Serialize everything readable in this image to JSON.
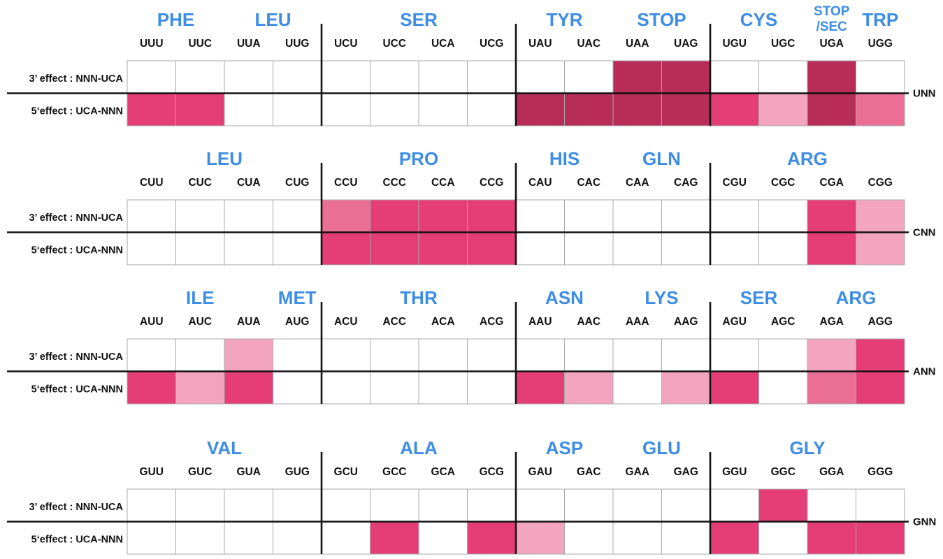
{
  "colors": {
    "none": "#ffffff",
    "light": "#f3a4bf",
    "medium": "#eb6e97",
    "strong": "#e53d76",
    "stop": "#b72c59",
    "amino_acid_label": "#3d8de5",
    "grid_line": "#a9a9a9",
    "divider": "#111111"
  },
  "row_labels": [
    "3’ effect : NNN-UCA",
    "5‘effect : UCA-NNN"
  ],
  "blocks": [
    {
      "group_label": "UNN",
      "amino_acids": [
        {
          "label": "PHE",
          "from": 0,
          "to": 1
        },
        {
          "label": "LEU",
          "from": 2,
          "to": 3
        },
        {
          "label": "SER",
          "from": 4,
          "to": 7
        },
        {
          "label": "TYR",
          "from": 8,
          "to": 9
        },
        {
          "label": "STOP",
          "from": 10,
          "to": 11
        },
        {
          "label": "CYS",
          "from": 12,
          "to": 13
        },
        {
          "label": "STOP",
          "label2": "/SEC",
          "from": 14,
          "to": 14
        },
        {
          "label": "TRP",
          "from": 15,
          "to": 15
        }
      ],
      "codons": [
        "UUU",
        "UUC",
        "UUA",
        "UUG",
        "UCU",
        "UCC",
        "UCA",
        "UCG",
        "UAU",
        "UAC",
        "UAA",
        "UAG",
        "UGU",
        "UGC",
        "UGA",
        "UGG"
      ],
      "effect_3": [
        "none",
        "none",
        "none",
        "none",
        "none",
        "none",
        "none",
        "none",
        "none",
        "none",
        "stop",
        "stop",
        "none",
        "none",
        "stop",
        "none"
      ],
      "effect_5": [
        "strong",
        "strong",
        "none",
        "none",
        "none",
        "none",
        "none",
        "none",
        "stop",
        "stop",
        "stop",
        "stop",
        "strong",
        "light",
        "stop",
        "medium"
      ]
    },
    {
      "group_label": "CNN",
      "amino_acids": [
        {
          "label": "LEU",
          "from": 0,
          "to": 3
        },
        {
          "label": "PRO",
          "from": 4,
          "to": 7
        },
        {
          "label": "HIS",
          "from": 8,
          "to": 9
        },
        {
          "label": "GLN",
          "from": 10,
          "to": 11
        },
        {
          "label": "ARG",
          "from": 12,
          "to": 15
        }
      ],
      "codons": [
        "CUU",
        "CUC",
        "CUA",
        "CUG",
        "CCU",
        "CCC",
        "CCA",
        "CCG",
        "CAU",
        "CAC",
        "CAA",
        "CAG",
        "CGU",
        "CGC",
        "CGA",
        "CGG"
      ],
      "effect_3": [
        "none",
        "none",
        "none",
        "none",
        "medium",
        "strong",
        "strong",
        "strong",
        "none",
        "none",
        "none",
        "none",
        "none",
        "none",
        "strong",
        "light"
      ],
      "effect_5": [
        "none",
        "none",
        "none",
        "none",
        "strong",
        "strong",
        "strong",
        "strong",
        "none",
        "none",
        "none",
        "none",
        "none",
        "none",
        "strong",
        "light"
      ]
    },
    {
      "group_label": "ANN",
      "amino_acids": [
        {
          "label": "ILE",
          "from": 0,
          "to": 2
        },
        {
          "label": "MET",
          "from": 3,
          "to": 3
        },
        {
          "label": "THR",
          "from": 4,
          "to": 7
        },
        {
          "label": "ASN",
          "from": 8,
          "to": 9
        },
        {
          "label": "LYS",
          "from": 10,
          "to": 11
        },
        {
          "label": "SER",
          "from": 12,
          "to": 13
        },
        {
          "label": "ARG",
          "from": 14,
          "to": 15
        }
      ],
      "codons": [
        "AUU",
        "AUC",
        "AUA",
        "AUG",
        "ACU",
        "ACC",
        "ACA",
        "ACG",
        "AAU",
        "AAC",
        "AAA",
        "AAG",
        "AGU",
        "AGC",
        "AGA",
        "AGG"
      ],
      "effect_3": [
        "none",
        "none",
        "light",
        "none",
        "none",
        "none",
        "none",
        "none",
        "none",
        "none",
        "none",
        "none",
        "none",
        "none",
        "light",
        "strong"
      ],
      "effect_5": [
        "strong",
        "light",
        "strong",
        "none",
        "none",
        "none",
        "none",
        "none",
        "strong",
        "light",
        "none",
        "light",
        "strong",
        "none",
        "medium",
        "strong"
      ]
    },
    {
      "group_label": "GNN",
      "amino_acids": [
        {
          "label": "VAL",
          "from": 0,
          "to": 3
        },
        {
          "label": "ALA",
          "from": 4,
          "to": 7
        },
        {
          "label": "ASP",
          "from": 8,
          "to": 9
        },
        {
          "label": "GLU",
          "from": 10,
          "to": 11
        },
        {
          "label": "GLY",
          "from": 12,
          "to": 15
        }
      ],
      "codons": [
        "GUU",
        "GUC",
        "GUA",
        "GUG",
        "GCU",
        "GCC",
        "GCA",
        "GCG",
        "GAU",
        "GAC",
        "GAA",
        "GAG",
        "GGU",
        "GGC",
        "GGA",
        "GGG"
      ],
      "effect_3": [
        "none",
        "none",
        "none",
        "none",
        "none",
        "none",
        "none",
        "none",
        "none",
        "none",
        "none",
        "none",
        "none",
        "strong",
        "none",
        "none"
      ],
      "effect_5": [
        "none",
        "none",
        "none",
        "none",
        "none",
        "strong",
        "none",
        "strong",
        "light",
        "none",
        "none",
        "none",
        "strong",
        "none",
        "strong",
        "strong"
      ]
    }
  ]
}
